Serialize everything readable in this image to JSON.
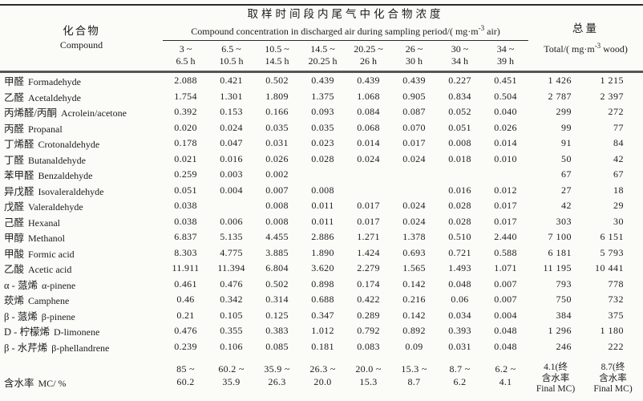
{
  "colors": {
    "paper": "#fbfbf8",
    "ink": "#1c1c1c",
    "rule_dark": "#2a2a2a",
    "rule_heavy": "#565656"
  },
  "title_cn": "取样时间段内尾气中化合物浓度",
  "header": {
    "compound_cn": "化合物",
    "compound_en": "Compound",
    "concentration_group_en": "Compound concentration in discharged air during sampling period/( mg·m^{-3} air)",
    "total_cn": "总量",
    "total_en": "Total/( mg·m^{-3} wood)",
    "time_periods": [
      [
        "3 ~",
        "6.5 h"
      ],
      [
        "6.5 ~",
        "10.5 h"
      ],
      [
        "10.5 ~",
        "14.5 h"
      ],
      [
        "14.5 ~",
        "20.25 h"
      ],
      [
        "20.25 ~",
        "26 h"
      ],
      [
        "26 ~",
        "30 h"
      ],
      [
        "30 ~",
        "34 h"
      ],
      [
        "34 ~",
        "39 h"
      ]
    ]
  },
  "rows": [
    {
      "cn": "甲醛",
      "en": "Formadehyde",
      "values": [
        "2.088",
        "0.421",
        "0.502",
        "0.439",
        "0.439",
        "0.439",
        "0.227",
        "0.451"
      ],
      "totals": [
        "1 426",
        "1 215"
      ]
    },
    {
      "cn": "乙醛",
      "en": "Acetaldehyde",
      "values": [
        "1.754",
        "1.301",
        "1.809",
        "1.375",
        "1.068",
        "0.905",
        "0.834",
        "0.504"
      ],
      "totals": [
        "2 787",
        "2 397"
      ]
    },
    {
      "cn": "丙烯醛/丙酮",
      "en": "Acrolein/acetone",
      "values": [
        "0.392",
        "0.153",
        "0.166",
        "0.093",
        "0.084",
        "0.087",
        "0.052",
        "0.040"
      ],
      "totals": [
        "299",
        "272"
      ]
    },
    {
      "cn": "丙醛",
      "en": "Propanal",
      "values": [
        "0.020",
        "0.024",
        "0.035",
        "0.035",
        "0.068",
        "0.070",
        "0.051",
        "0.026"
      ],
      "totals": [
        "99",
        "77"
      ]
    },
    {
      "cn": "丁烯醛",
      "en": "Crotonaldehyde",
      "values": [
        "0.178",
        "0.047",
        "0.031",
        "0.023",
        "0.014",
        "0.017",
        "0.008",
        "0.014"
      ],
      "totals": [
        "91",
        "84"
      ]
    },
    {
      "cn": "丁醛",
      "en": "Butanaldehyde",
      "values": [
        "0.021",
        "0.016",
        "0.026",
        "0.028",
        "0.024",
        "0.024",
        "0.018",
        "0.010"
      ],
      "totals": [
        "50",
        "42"
      ]
    },
    {
      "cn": "苯甲醛",
      "en": "Benzaldehyde",
      "values": [
        "0.259",
        "0.003",
        "0.002",
        "",
        "",
        "",
        "",
        ""
      ],
      "totals": [
        "67",
        "67"
      ]
    },
    {
      "cn": "异戊醛",
      "en": "Isovaleraldehyde",
      "values": [
        "0.051",
        "0.004",
        "0.007",
        "0.008",
        "",
        "",
        "0.016",
        "0.012"
      ],
      "totals": [
        "27",
        "18"
      ]
    },
    {
      "cn": "戊醛",
      "en": "Valeraldehyde",
      "values": [
        "0.038",
        "",
        "0.008",
        "0.011",
        "0.017",
        "0.024",
        "0.028",
        "0.017"
      ],
      "totals": [
        "42",
        "29"
      ]
    },
    {
      "cn": "己醛",
      "en": "Hexanal",
      "values": [
        "0.038",
        "0.006",
        "0.008",
        "0.011",
        "0.017",
        "0.024",
        "0.028",
        "0.017"
      ],
      "totals": [
        "303",
        "30"
      ]
    },
    {
      "cn": "甲醇",
      "en": "Methanol",
      "values": [
        "6.837",
        "5.135",
        "4.455",
        "2.886",
        "1.271",
        "1.378",
        "0.510",
        "2.440"
      ],
      "totals": [
        "7 100",
        "6 151"
      ]
    },
    {
      "cn": "甲酸",
      "en": "Formic acid",
      "values": [
        "8.303",
        "4.775",
        "3.885",
        "1.890",
        "1.424",
        "0.693",
        "0.721",
        "0.588"
      ],
      "totals": [
        "6 181",
        "5 793"
      ]
    },
    {
      "cn": "乙酸",
      "en": "Acetic acid",
      "values": [
        "11.911",
        "11.394",
        "6.804",
        "3.620",
        "2.279",
        "1.565",
        "1.493",
        "1.071"
      ],
      "totals": [
        "11 195",
        "10 441"
      ]
    },
    {
      "cn": "α - 蒎烯",
      "en": "α-pinene",
      "values": [
        "0.461",
        "0.476",
        "0.502",
        "0.898",
        "0.174",
        "0.142",
        "0.048",
        "0.007"
      ],
      "totals": [
        "793",
        "778"
      ]
    },
    {
      "cn": "莰烯",
      "en": "Camphene",
      "values": [
        "0.46",
        "0.342",
        "0.314",
        "0.688",
        "0.422",
        "0.216",
        "0.06",
        "0.007"
      ],
      "totals": [
        "750",
        "732"
      ]
    },
    {
      "cn": "β - 蒎烯",
      "en": "β-pinene",
      "values": [
        "0.21",
        "0.105",
        "0.125",
        "0.347",
        "0.289",
        "0.142",
        "0.034",
        "0.004"
      ],
      "totals": [
        "384",
        "375"
      ]
    },
    {
      "cn": "D - 柠檬烯",
      "en": "D-limonene",
      "values": [
        "0.476",
        "0.355",
        "0.383",
        "1.012",
        "0.792",
        "0.892",
        "0.393",
        "0.048"
      ],
      "totals": [
        "1 296",
        "1 180"
      ]
    },
    {
      "cn": "β - 水芹烯",
      "en": "β-phellandrene",
      "values": [
        "0.239",
        "0.106",
        "0.085",
        "0.181",
        "0.083",
        "0.09",
        "0.031",
        "0.048"
      ],
      "totals": [
        "246",
        "222"
      ]
    }
  ],
  "mc_row": {
    "cn": "含水率",
    "en": "MC/ %",
    "values": [
      [
        "85 ~",
        "60.2"
      ],
      [
        "60.2 ~",
        "35.9"
      ],
      [
        "35.9 ~",
        "26.3"
      ],
      [
        "26.3 ~",
        "20.0"
      ],
      [
        "20.0 ~",
        "15.3"
      ],
      [
        "15.3 ~",
        "8.7"
      ],
      [
        "8.7 ~",
        "6.2"
      ],
      [
        "6.2 ~",
        "4.1"
      ]
    ],
    "totals": [
      [
        "4.1(终",
        "含水率",
        "Final MC)"
      ],
      [
        "8.7(终",
        "含水率",
        "Final MC)"
      ]
    ]
  }
}
